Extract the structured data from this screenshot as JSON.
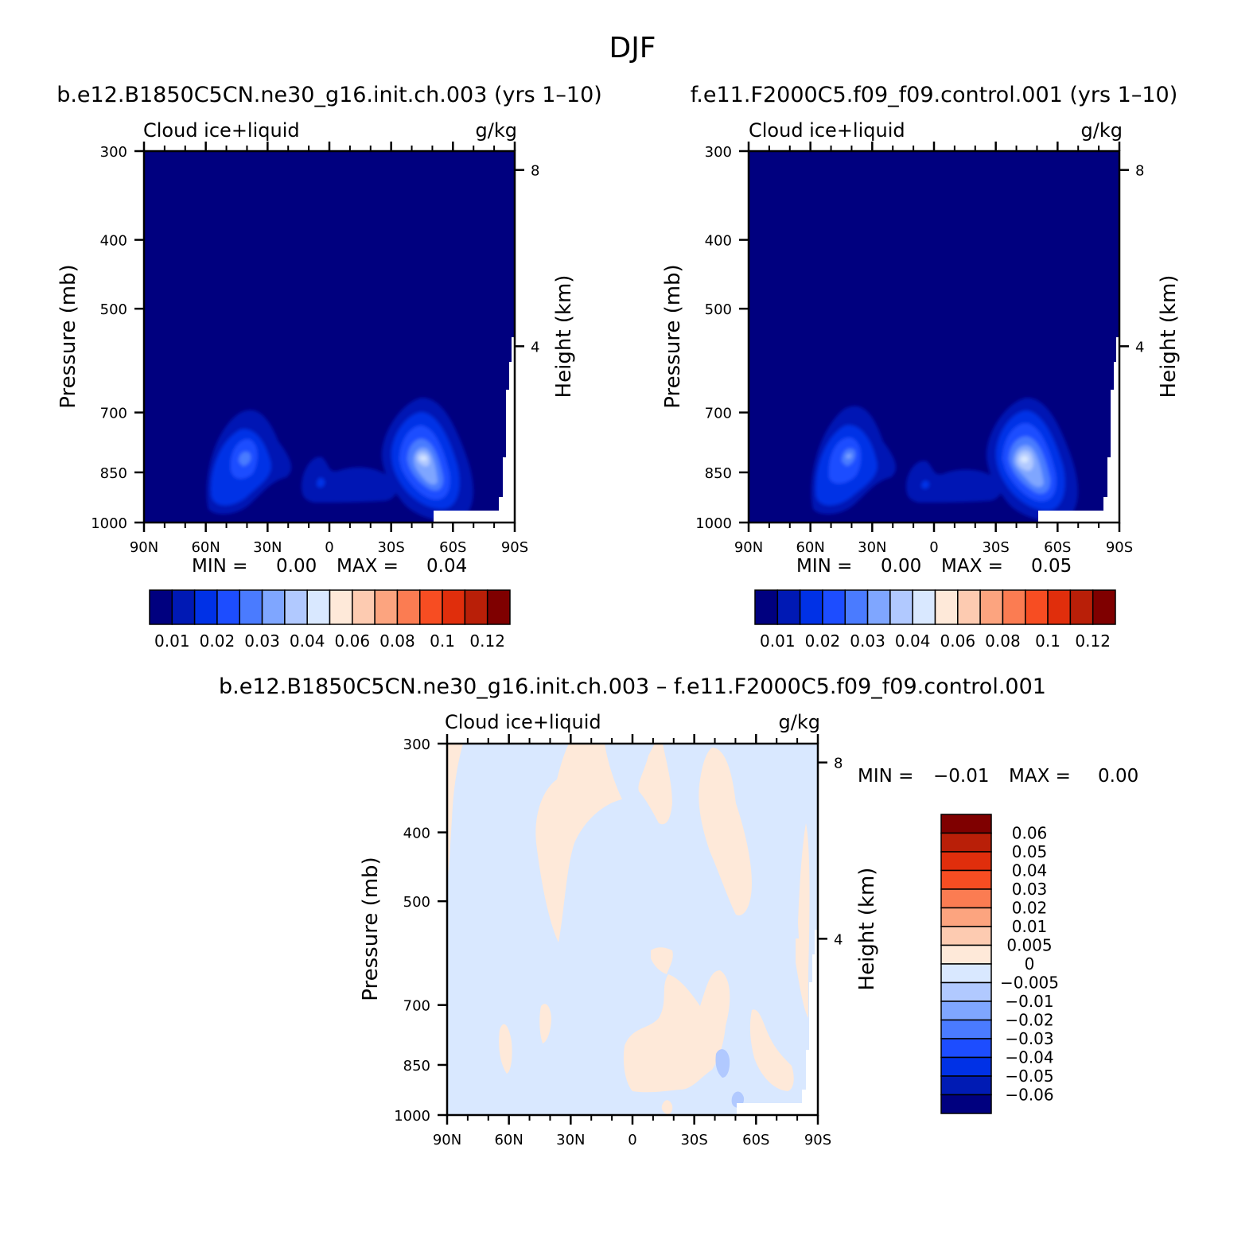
{
  "figure_title": "DJF",
  "chart_data": [
    {
      "type": "heatmap",
      "id": "panel-model-b",
      "title": "b.e12.B1850C5CN.ne30_g16.init.ch.003 (yrs 1–10)",
      "left_label": "Cloud ice+liquid",
      "right_label": "g/kg",
      "xlabel": "",
      "ylabel": "Pressure (mb)",
      "y2label": "Height (km)",
      "x_ticks": [
        "90N",
        "60N",
        "30N",
        "0",
        "30S",
        "60S",
        "90S"
      ],
      "x_tick_values": [
        90,
        60,
        30,
        0,
        -30,
        -60,
        -90
      ],
      "xlim": [
        90,
        -90
      ],
      "y_ticks": [
        300,
        400,
        500,
        700,
        850,
        1000
      ],
      "ylim": [
        1000,
        300
      ],
      "y_scale": "log",
      "y2_ticks": [
        8,
        4
      ],
      "stats_min_label": "MIN =",
      "stats_min": "0.00",
      "stats_max_label": "MAX =",
      "stats_max": "0.04",
      "colorbar_labels": [
        "0.01",
        "0.02",
        "0.03",
        "0.04",
        "0.06",
        "0.08",
        "0.1",
        "0.12"
      ],
      "field_features": [
        {
          "lat": 42,
          "p": 870,
          "peak": 0.024,
          "lat_spread": 12,
          "p_spread": 90
        },
        {
          "lat": -42,
          "p": 875,
          "peak": 0.04,
          "lat_spread": 9,
          "p_spread": 85
        },
        {
          "lat": 0,
          "p": 920,
          "peak": 0.011,
          "lat_spread": 20,
          "p_spread": 50
        }
      ]
    },
    {
      "type": "heatmap",
      "id": "panel-model-f",
      "title": "f.e11.F2000C5.f09_f09.control.001 (yrs 1–10)",
      "left_label": "Cloud ice+liquid",
      "right_label": "g/kg",
      "xlabel": "",
      "ylabel": "Pressure (mb)",
      "y2label": "Height (km)",
      "x_ticks": [
        "90N",
        "60N",
        "30N",
        "0",
        "30S",
        "60S",
        "90S"
      ],
      "x_tick_values": [
        90,
        60,
        30,
        0,
        -30,
        -60,
        -90
      ],
      "xlim": [
        90,
        -90
      ],
      "y_ticks": [
        300,
        400,
        500,
        700,
        850,
        1000
      ],
      "ylim": [
        1000,
        300
      ],
      "y_scale": "log",
      "y2_ticks": [
        8,
        4
      ],
      "stats_min_label": "MIN =",
      "stats_min": "0.00",
      "stats_max_label": "MAX =",
      "stats_max": "0.05",
      "colorbar_labels": [
        "0.01",
        "0.02",
        "0.03",
        "0.04",
        "0.06",
        "0.08",
        "0.1",
        "0.12"
      ],
      "field_features": [
        {
          "lat": 42,
          "p": 870,
          "peak": 0.026,
          "lat_spread": 12,
          "p_spread": 90
        },
        {
          "lat": -43,
          "p": 880,
          "peak": 0.045,
          "lat_spread": 9,
          "p_spread": 85
        },
        {
          "lat": 0,
          "p": 920,
          "peak": 0.011,
          "lat_spread": 20,
          "p_spread": 50
        }
      ]
    },
    {
      "type": "heatmap",
      "id": "panel-difference",
      "title": "b.e12.B1850C5CN.ne30_g16.init.ch.003 – f.e11.F2000C5.f09_f09.control.001",
      "left_label": "Cloud ice+liquid",
      "right_label": "g/kg",
      "xlabel": "",
      "ylabel": "Pressure (mb)",
      "y2label": "Height (km)",
      "x_ticks": [
        "90N",
        "60N",
        "30N",
        "0",
        "30S",
        "60S",
        "90S"
      ],
      "x_tick_values": [
        90,
        60,
        30,
        0,
        -30,
        -60,
        -90
      ],
      "xlim": [
        90,
        -90
      ],
      "y_ticks": [
        300,
        400,
        500,
        700,
        850,
        1000
      ],
      "ylim": [
        1000,
        300
      ],
      "y_scale": "log",
      "y2_ticks": [
        8,
        4
      ],
      "stats_min_label": "MIN =",
      "stats_min": "−0.01",
      "stats_max_label": "MAX =",
      "stats_max": "0.00",
      "colorbar_labels": [
        "0.06",
        "0.05",
        "0.04",
        "0.03",
        "0.02",
        "0.01",
        "0.005",
        "0",
        "−0.005",
        "−0.01",
        "−0.02",
        "−0.03",
        "−0.04",
        "−0.05",
        "−0.06"
      ],
      "field_features": [
        {
          "lat": 37,
          "p": 470,
          "sign": "positive",
          "lat_spread": 8,
          "p_spread": 180
        },
        {
          "lat": -35,
          "p": 440,
          "sign": "positive",
          "lat_spread": 7,
          "p_spread": 150
        },
        {
          "lat": -18,
          "p": 900,
          "sign": "positive",
          "lat_spread": 10,
          "p_spread": 90
        },
        {
          "lat": -52,
          "p": 890,
          "sign": "negative",
          "lat_spread": 2,
          "p_spread": 30
        }
      ]
    }
  ],
  "colors": {
    "model_scale": [
      "#00007f",
      "#0019b4",
      "#0031e6",
      "#1d4dff",
      "#4a7bff",
      "#7fa6ff",
      "#b1c9ff",
      "#d9e8ff",
      "#fee9d9",
      "#fdcbb1",
      "#fca47f",
      "#fb7c52",
      "#f74d22",
      "#e02e0c",
      "#b91f08",
      "#7f0000"
    ],
    "diff_scale": [
      "#00007f",
      "#001bb4",
      "#0031e6",
      "#1d4dff",
      "#4a7bff",
      "#7fa6ff",
      "#b1c9ff",
      "#d9e8ff",
      "#fee9d9",
      "#fdcbb1",
      "#fca47f",
      "#fb7c52",
      "#f74d22",
      "#e02e0c",
      "#b91f08",
      "#7f0000"
    ],
    "missing": "#ffffff"
  }
}
